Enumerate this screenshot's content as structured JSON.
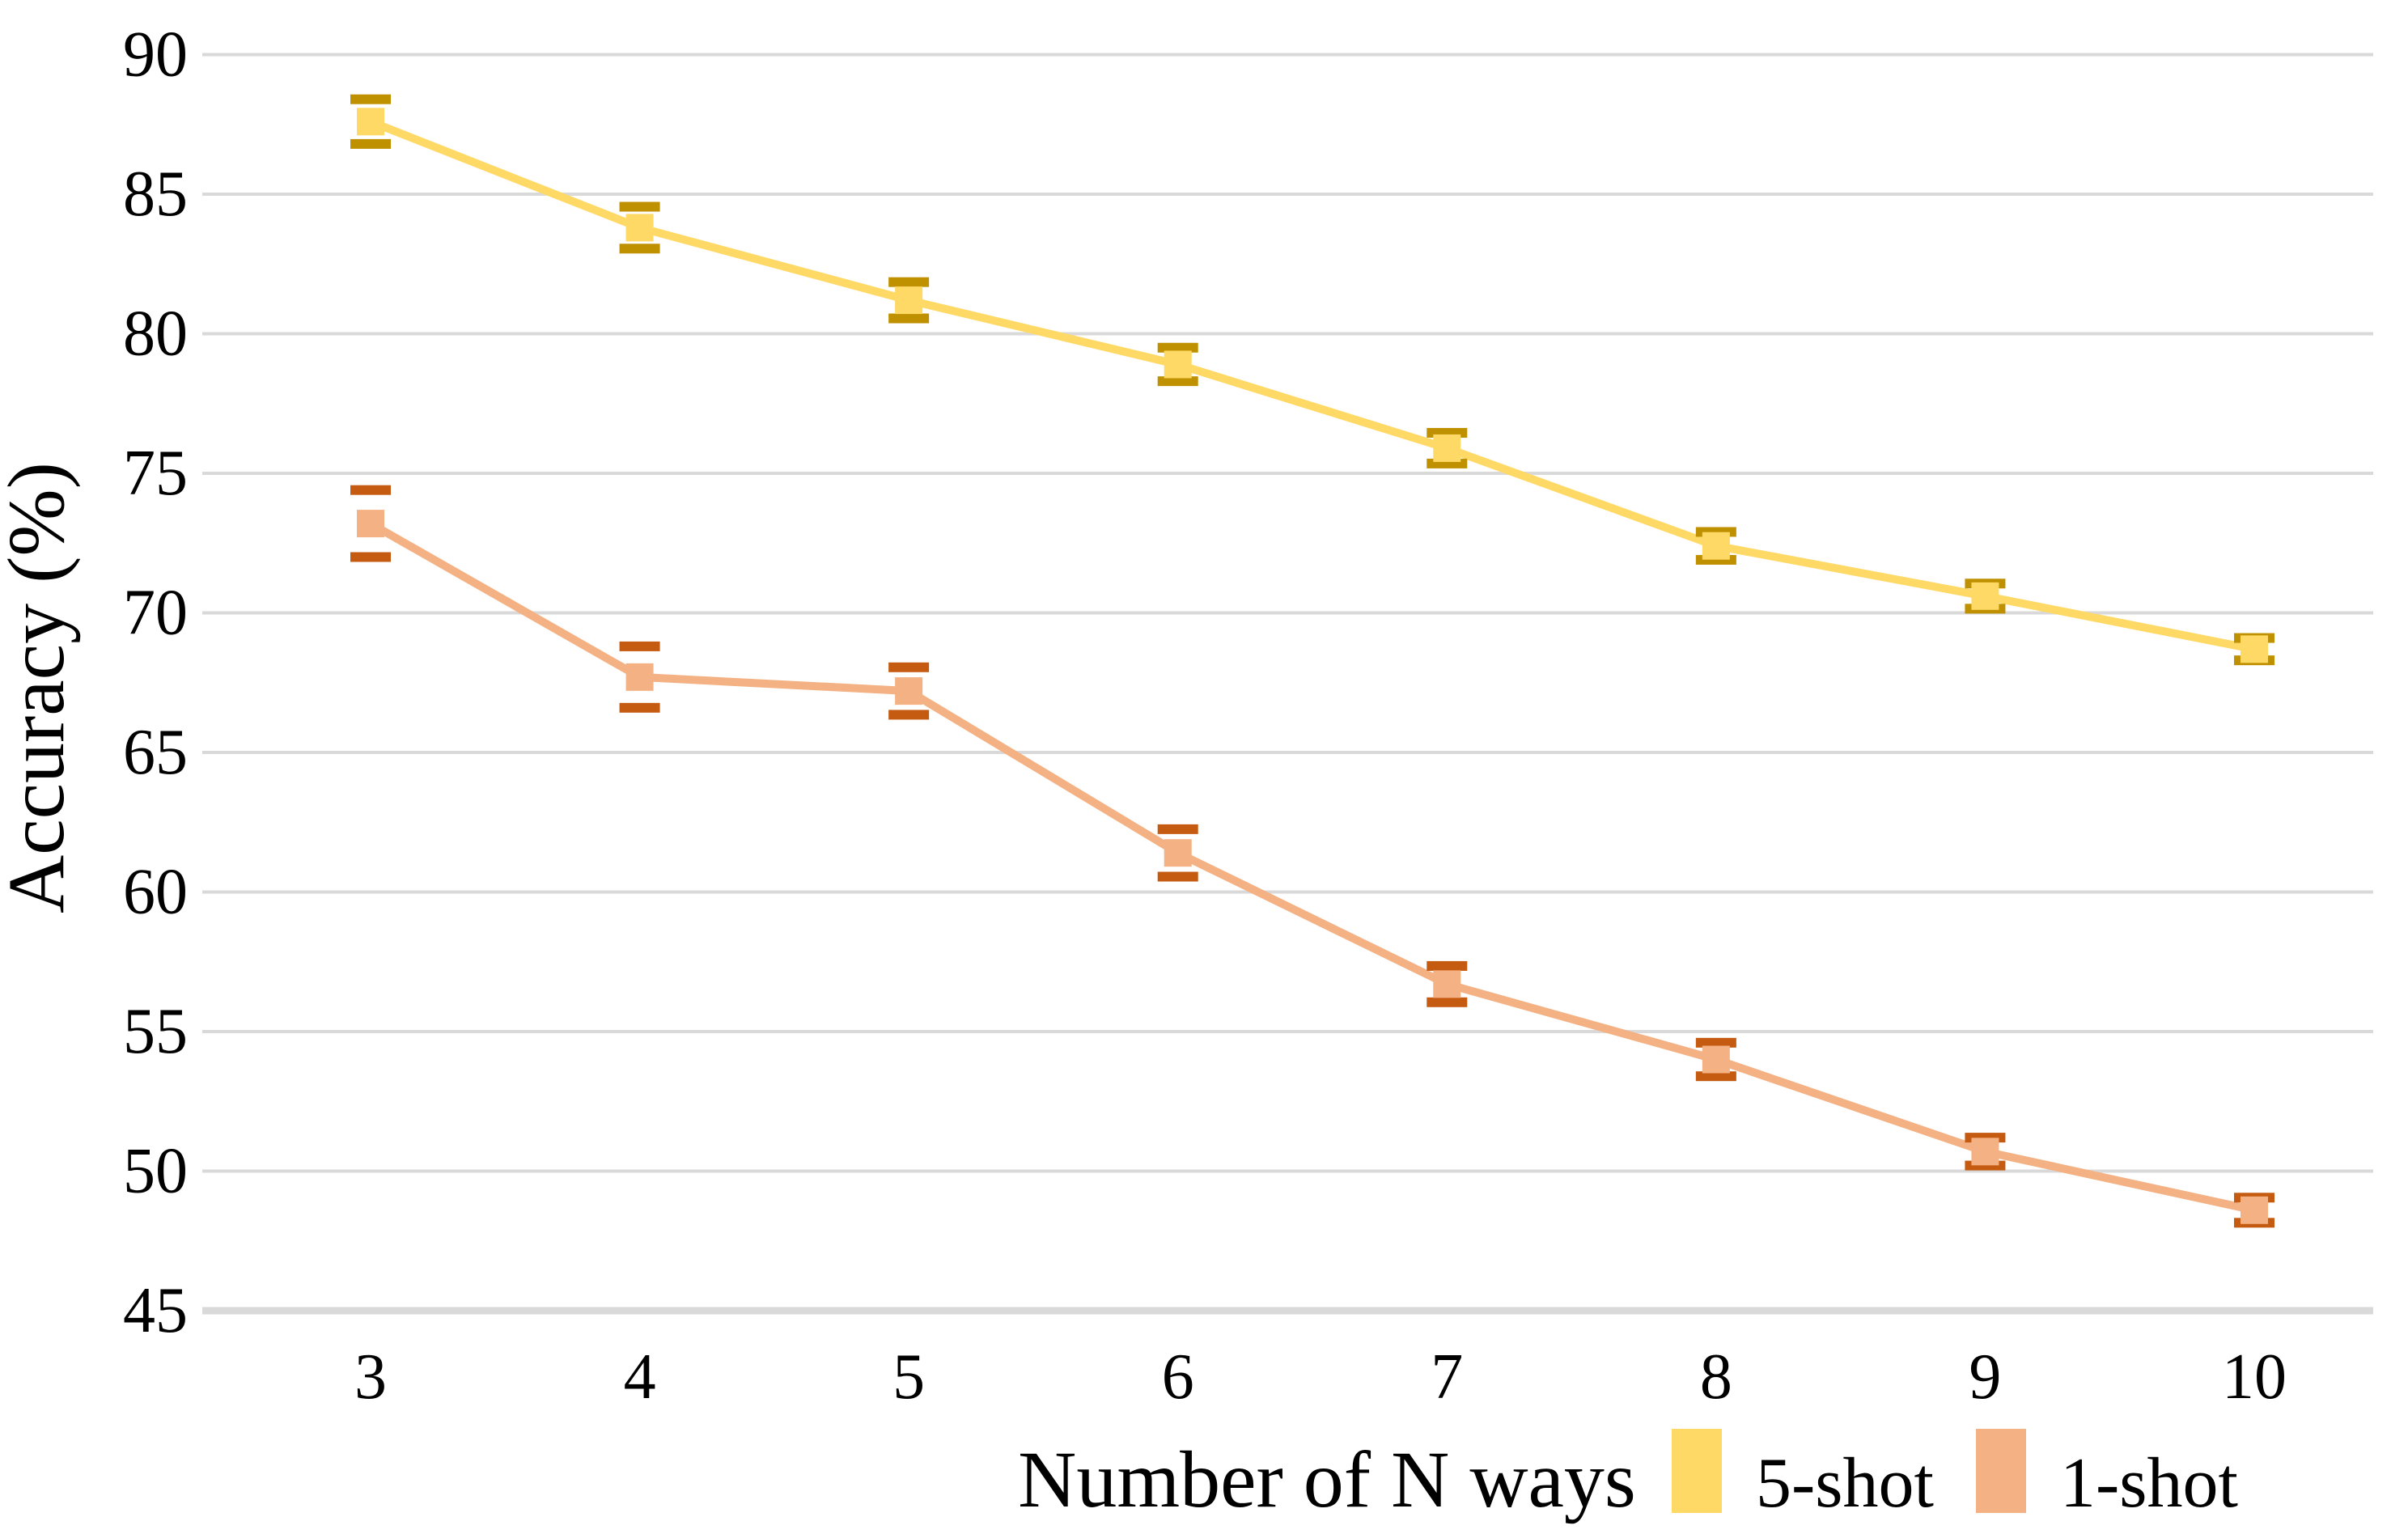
{
  "chart_data": {
    "type": "line",
    "title": "",
    "xlabel": "Number of N ways",
    "ylabel": "Accuracy (%)",
    "x": [
      3,
      4,
      5,
      6,
      7,
      8,
      9,
      10
    ],
    "yticks": [
      45,
      50,
      55,
      60,
      65,
      70,
      75,
      80,
      85,
      90
    ],
    "ylim": [
      45,
      90
    ],
    "grid": true,
    "legend_position": "bottom-right",
    "series": [
      {
        "name": "5-shot",
        "color": "#FFD966",
        "error_color": "#BF9000",
        "values": [
          87.6,
          83.8,
          81.2,
          78.9,
          75.9,
          72.4,
          70.6,
          68.7
        ],
        "errors": [
          0.8,
          0.75,
          0.65,
          0.6,
          0.55,
          0.5,
          0.45,
          0.4
        ]
      },
      {
        "name": "1-shot",
        "color": "#F4B183",
        "error_color": "#C55A11",
        "values": [
          73.2,
          67.7,
          67.2,
          61.4,
          56.7,
          54.0,
          50.7,
          48.6
        ],
        "errors": [
          1.2,
          1.1,
          0.85,
          0.85,
          0.65,
          0.6,
          0.5,
          0.45
        ]
      }
    ],
    "colors": {
      "gridline": "#D9D9D9",
      "axis_line": "#D9D9D9",
      "text": "#000000",
      "background": "#FFFFFF"
    }
  }
}
